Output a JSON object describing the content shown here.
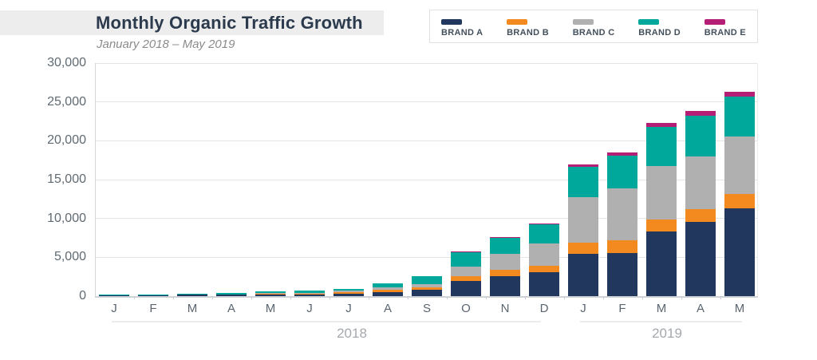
{
  "header": {
    "title": "Monthly Organic Traffic Growth",
    "subtitle": "January 2018 – May 2019"
  },
  "legend": {
    "items": [
      {
        "label": "BRAND A",
        "color": "#21375e"
      },
      {
        "label": "BRAND B",
        "color": "#f28a1f"
      },
      {
        "label": "BRAND C",
        "color": "#b0b0b0"
      },
      {
        "label": "BRAND D",
        "color": "#00a79b"
      },
      {
        "label": "BRAND E",
        "color": "#b41e75"
      }
    ]
  },
  "chart_data": {
    "type": "bar",
    "stacked": true,
    "title": "Monthly Organic Traffic Growth",
    "subtitle": "January 2018 – May 2019",
    "categories": [
      "J",
      "F",
      "M",
      "A",
      "M",
      "J",
      "J",
      "A",
      "S",
      "O",
      "N",
      "D",
      "J",
      "F",
      "M",
      "A",
      "M"
    ],
    "series": [
      {
        "name": "BRAND A",
        "color": "#21375e",
        "values": [
          150,
          180,
          200,
          250,
          280,
          220,
          330,
          550,
          800,
          2000,
          2600,
          3100,
          5400,
          5550,
          8300,
          9550,
          11350
        ]
      },
      {
        "name": "BRAND B",
        "color": "#f28a1f",
        "values": [
          0,
          0,
          0,
          0,
          70,
          100,
          170,
          250,
          380,
          600,
          750,
          850,
          1500,
          1600,
          1550,
          1650,
          1800
        ]
      },
      {
        "name": "BRAND C",
        "color": "#b0b0b0",
        "values": [
          0,
          0,
          0,
          0,
          60,
          100,
          170,
          380,
          400,
          1200,
          2050,
          2850,
          5850,
          6700,
          6900,
          6800,
          7350
        ]
      },
      {
        "name": "BRAND D",
        "color": "#00a79b",
        "values": [
          50,
          60,
          100,
          150,
          170,
          250,
          280,
          420,
          1020,
          1900,
          2150,
          2400,
          3900,
          4250,
          5050,
          5200,
          5200
        ]
      },
      {
        "name": "BRAND E",
        "color": "#b41e75",
        "values": [
          0,
          0,
          0,
          0,
          0,
          0,
          0,
          0,
          0,
          100,
          100,
          100,
          350,
          400,
          500,
          600,
          600
        ]
      }
    ],
    "totals": [
      200,
      240,
      300,
      400,
      580,
      670,
      950,
      1600,
      2600,
      5800,
      7650,
      9300,
      17000,
      18500,
      22300,
      23800,
      26300
    ],
    "ylim": [
      0,
      30000
    ],
    "y_tick_labels": [
      "0",
      "5,000",
      "10,000",
      "15,000",
      "20,000",
      "25,000",
      "30,000"
    ],
    "grid": true,
    "legend_position": "top-right",
    "year_groups": [
      {
        "label": "2018",
        "start_month_index": 0,
        "end_month_index": 11
      },
      {
        "label": "2019",
        "start_month_index": 12,
        "end_month_index": 16
      }
    ]
  }
}
